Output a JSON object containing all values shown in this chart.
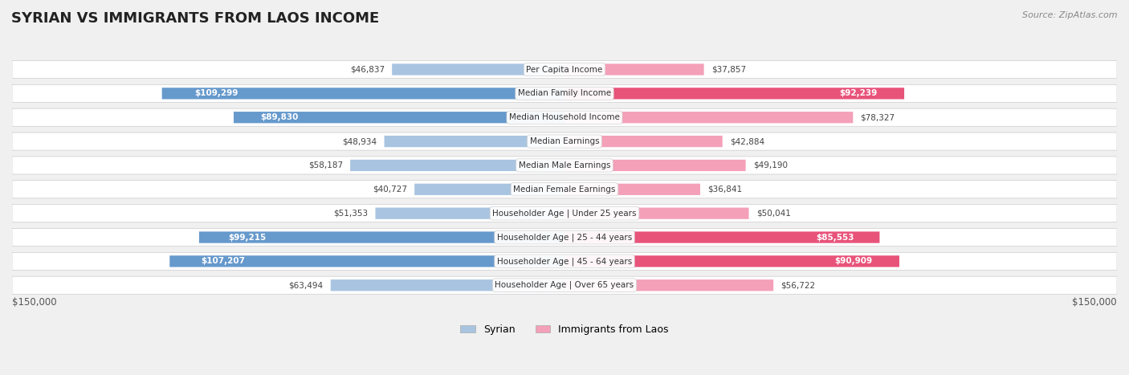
{
  "title": "SYRIAN VS IMMIGRANTS FROM LAOS INCOME",
  "source": "Source: ZipAtlas.com",
  "categories": [
    "Per Capita Income",
    "Median Family Income",
    "Median Household Income",
    "Median Earnings",
    "Median Male Earnings",
    "Median Female Earnings",
    "Householder Age | Under 25 years",
    "Householder Age | 25 - 44 years",
    "Householder Age | 45 - 64 years",
    "Householder Age | Over 65 years"
  ],
  "syrian_values": [
    46837,
    109299,
    89830,
    48934,
    58187,
    40727,
    51353,
    99215,
    107207,
    63494
  ],
  "laos_values": [
    37857,
    92239,
    78327,
    42884,
    49190,
    36841,
    50041,
    85553,
    90909,
    56722
  ],
  "syrian_labels": [
    "$46,837",
    "$109,299",
    "$89,830",
    "$48,934",
    "$58,187",
    "$40,727",
    "$51,353",
    "$99,215",
    "$107,207",
    "$63,494"
  ],
  "laos_labels": [
    "$37,857",
    "$92,239",
    "$78,327",
    "$42,884",
    "$49,190",
    "$36,841",
    "$50,041",
    "$85,553",
    "$90,909",
    "$56,722"
  ],
  "max_value": 150000,
  "syrian_color_light": "#a8c4e0",
  "syrian_color_dark": "#6699cc",
  "laos_color_light": "#f4a0b8",
  "laos_color_dark": "#e8537a",
  "bg_color": "#f0f0f0",
  "row_bg": "#f8f8f8",
  "legend_syrian": "Syrian",
  "legend_laos": "Immigrants from Laos"
}
